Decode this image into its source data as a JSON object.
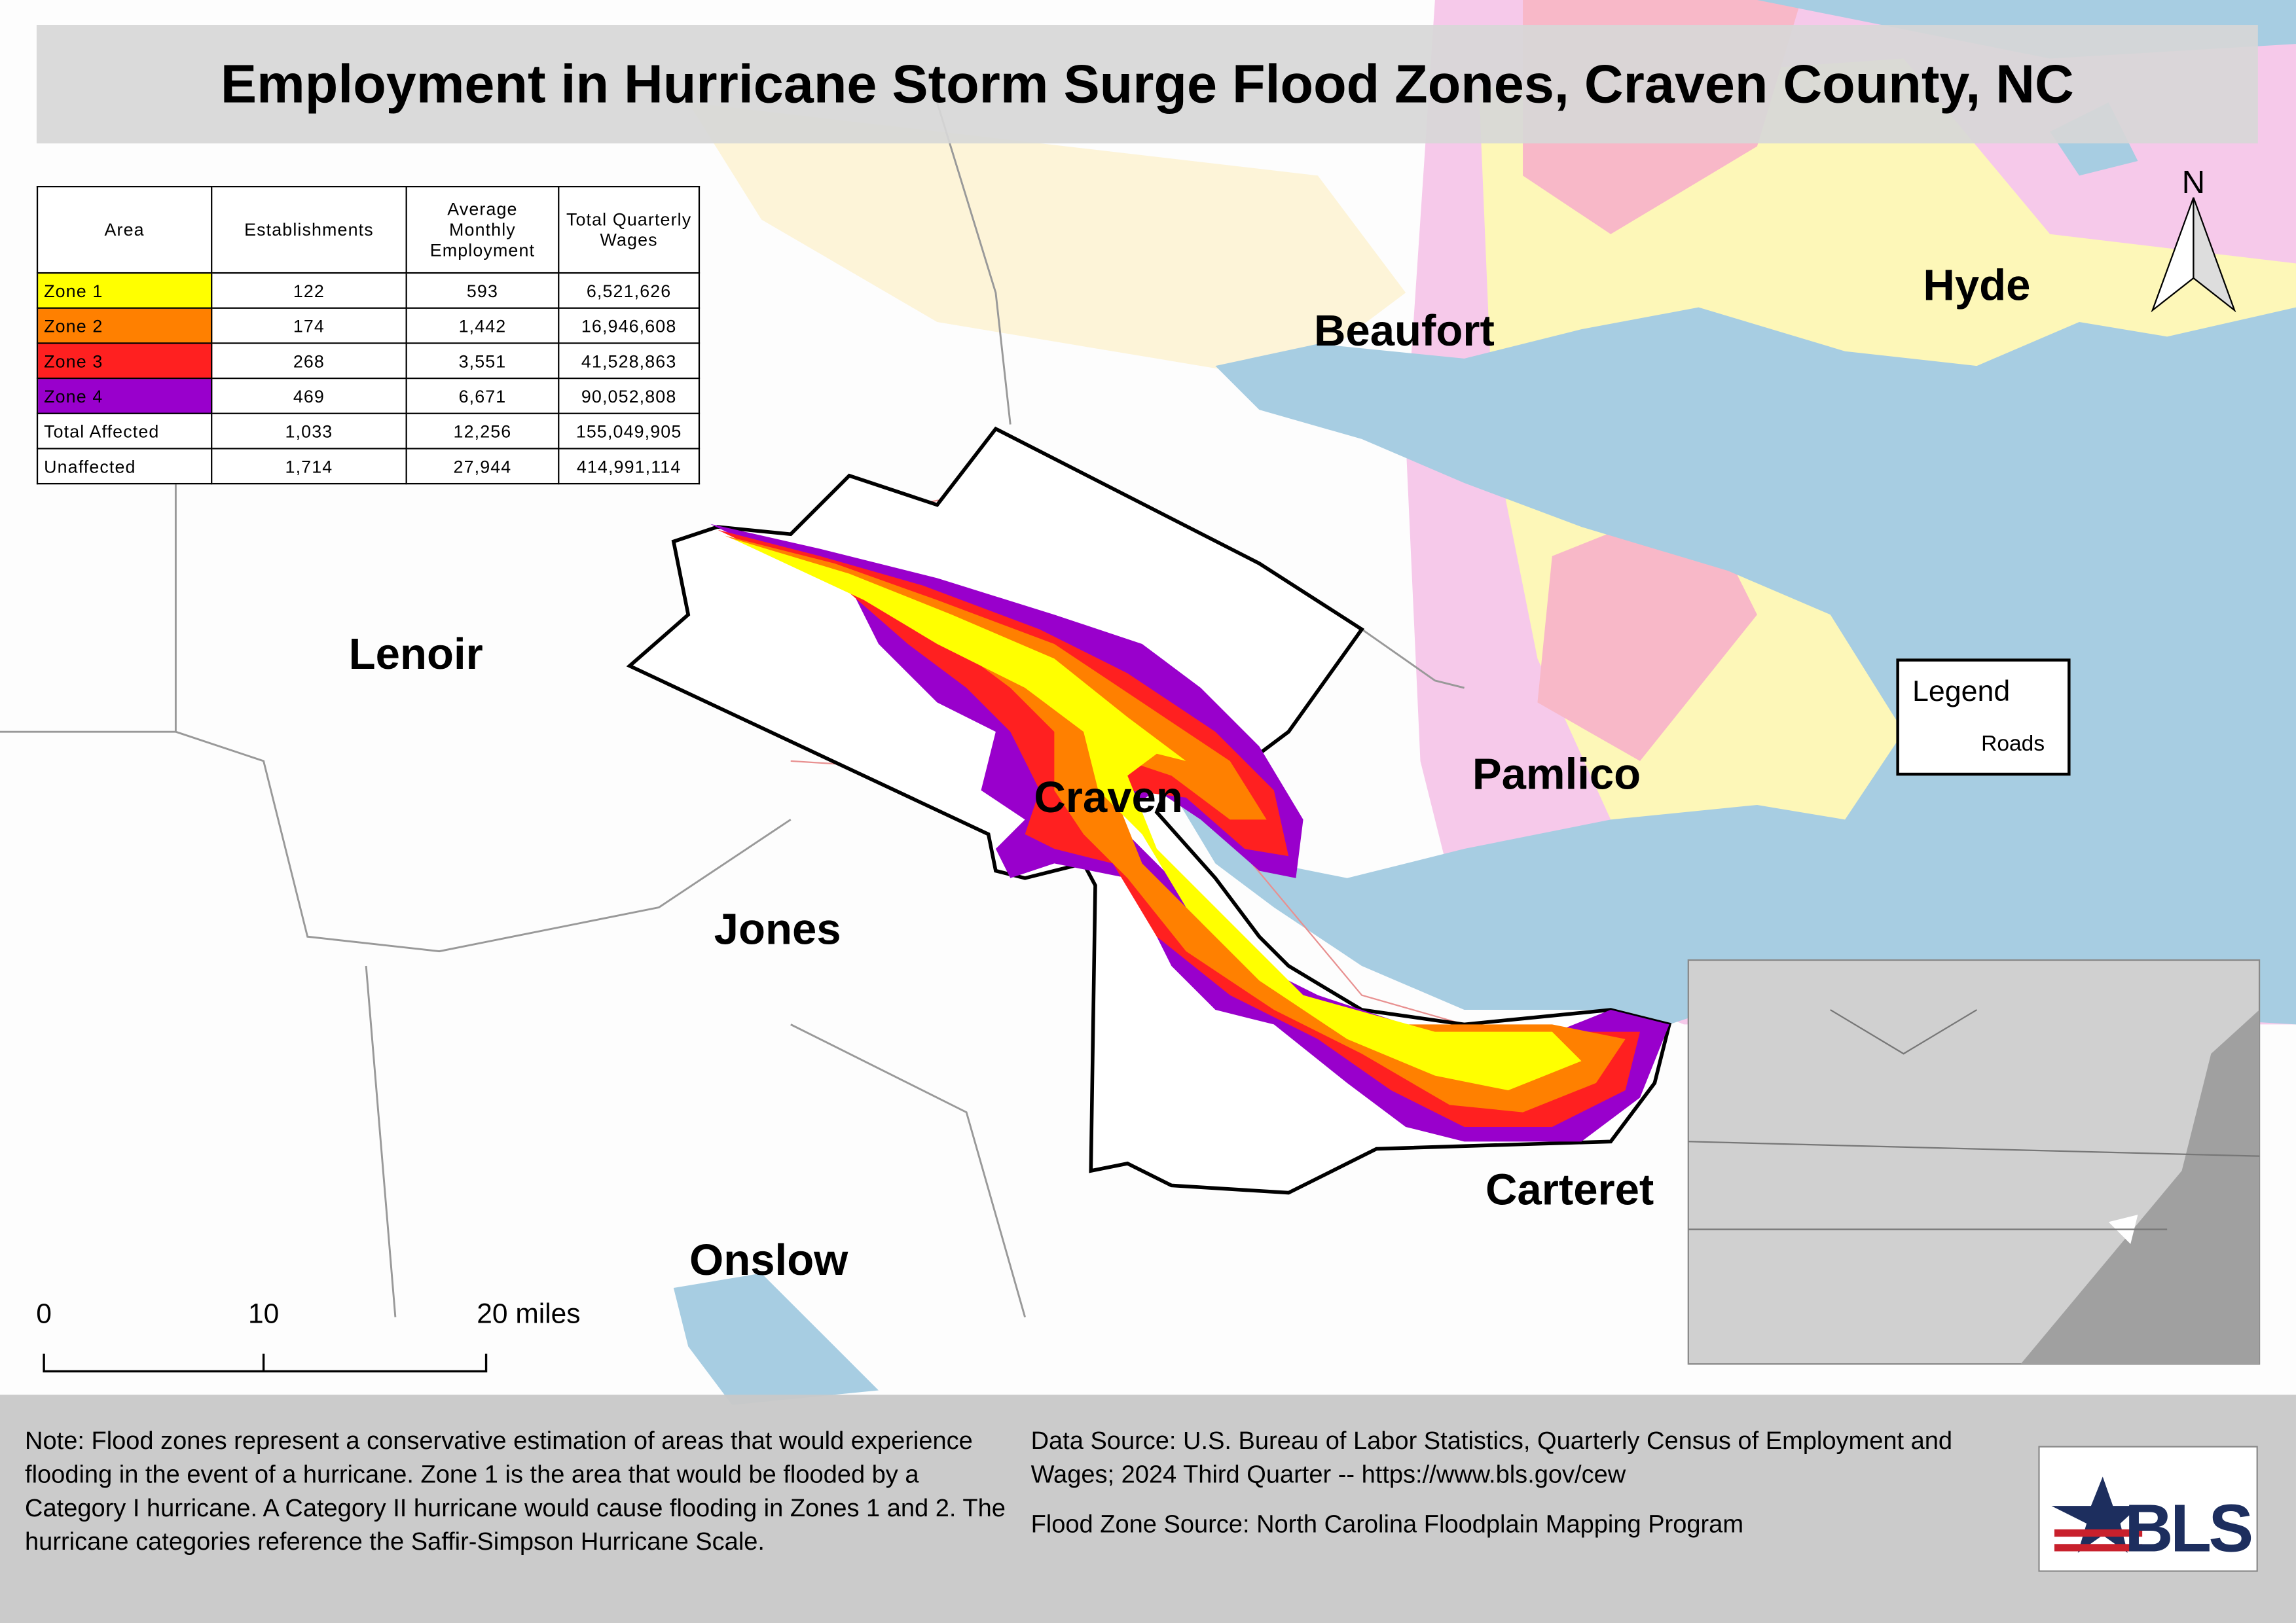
{
  "title": "Employment in Hurricane Storm Surge Flood Zones, Craven County, NC",
  "table": {
    "header": [
      "Area",
      "Establishments",
      "Average Monthly Employment",
      "Total Quarterly Wages"
    ],
    "rows": [
      [
        "Zone 1",
        "122",
        "593",
        "6,521,626"
      ],
      [
        "Zone 2",
        "174",
        "1,442",
        "16,946,608"
      ],
      [
        "Zone 3",
        "268",
        "3,551",
        "41,528,863"
      ],
      [
        "Zone 4",
        "469",
        "6,671",
        "90,052,808"
      ],
      [
        "Total Affected",
        "1,033",
        "12,256",
        "155,049,905"
      ],
      [
        "Unaffected",
        "1,714",
        "27,944",
        "414,991,114"
      ]
    ]
  },
  "counties": [
    "Hyde",
    "Beaufort",
    "Lenoir",
    "Pamlico",
    "Craven",
    "Jones",
    "Carteret",
    "Onslow"
  ],
  "north": "N",
  "legend": {
    "title": "Legend",
    "items": [
      "Roads"
    ]
  },
  "scale": [
    "0",
    "10",
    "20 miles"
  ],
  "note": "Note: Flood zones represent a conservative estimation of areas that would experience flooding in the event of a hurricane. Zone 1 is the area that would be flooded by a Category I hurricane. A Category II hurricane would cause flooding in Zones 1 and 2. The hurricane categories reference the Saffir-Simpson Hurricane Scale.",
  "data_source": "Data Source: U.S. Bureau of Labor Statistics, Quarterly Census of Employment and Wages; 2024 Third Quarter -- https://www.bls.gov/cew",
  "flood_source": "Flood Zone Source: North Carolina Floodplain Mapping Program",
  "logo": "BLS"
}
